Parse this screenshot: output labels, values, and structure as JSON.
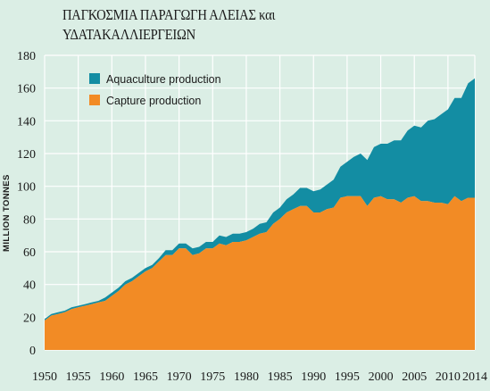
{
  "chart_data": {
    "type": "area",
    "title_lines": [
      "ΠΑΓΚΟΣΜΙΑ ΠΑΡΑΓΩΓΗ ΑΛΕΙΑΣ και",
      "ΥΔΑΤΑΚΑΛΛΙΕΡΓΕΙΩΝ"
    ],
    "xlabel": "",
    "ylabel": "MILLION TONNES",
    "xlim": [
      1950,
      2014
    ],
    "ylim": [
      0,
      180
    ],
    "y_ticks": [
      0,
      20,
      40,
      60,
      80,
      100,
      120,
      140,
      160,
      180
    ],
    "x_ticks": [
      1950,
      1955,
      1960,
      1965,
      1970,
      1975,
      1980,
      1985,
      1990,
      1995,
      2000,
      2005,
      2010,
      2014
    ],
    "grid": true,
    "stacked": true,
    "legend_position": "top-left",
    "colors": {
      "background": "#dbeee5",
      "grid": "#ffffff",
      "capture": "#f28b25",
      "aquaculture": "#138da3"
    },
    "x": [
      1950,
      1951,
      1952,
      1953,
      1954,
      1955,
      1956,
      1957,
      1958,
      1959,
      1960,
      1961,
      1962,
      1963,
      1964,
      1965,
      1966,
      1967,
      1968,
      1969,
      1970,
      1971,
      1972,
      1973,
      1974,
      1975,
      1976,
      1977,
      1978,
      1979,
      1980,
      1981,
      1982,
      1983,
      1984,
      1985,
      1986,
      1987,
      1988,
      1989,
      1990,
      1991,
      1992,
      1993,
      1994,
      1995,
      1996,
      1997,
      1998,
      1999,
      2000,
      2001,
      2002,
      2003,
      2004,
      2005,
      2006,
      2007,
      2008,
      2009,
      2010,
      2011,
      2012,
      2013,
      2014
    ],
    "series": [
      {
        "name": "Aquaculture production",
        "color": "#138da3",
        "values": [
          1,
          1,
          1,
          1,
          1,
          1,
          1,
          1,
          1,
          2,
          2,
          2,
          2,
          2,
          2,
          2,
          2,
          2,
          3,
          3,
          3,
          3,
          4,
          4,
          4,
          4,
          5,
          5,
          5,
          5,
          5,
          5,
          6,
          6,
          7,
          7,
          8,
          9,
          11,
          11,
          13,
          14,
          15,
          17,
          19,
          21,
          24,
          26,
          28,
          31,
          32,
          34,
          36,
          38,
          41,
          43,
          45,
          49,
          51,
          54,
          58,
          60,
          63,
          70,
          73
        ]
      },
      {
        "name": "Capture production",
        "color": "#f28b25",
        "values": [
          18,
          21,
          22,
          23,
          25,
          26,
          27,
          28,
          29,
          30,
          33,
          36,
          40,
          42,
          45,
          48,
          50,
          54,
          58,
          58,
          62,
          62,
          58,
          59,
          62,
          62,
          65,
          64,
          66,
          66,
          67,
          69,
          71,
          72,
          77,
          80,
          84,
          86,
          88,
          88,
          84,
          84,
          86,
          87,
          93,
          94,
          94,
          94,
          88,
          93,
          94,
          92,
          92,
          90,
          93,
          94,
          91,
          91,
          90,
          90,
          89,
          94,
          91,
          93,
          93
        ]
      }
    ],
    "legend": [
      {
        "label": "Aquaculture production",
        "color": "#138da3"
      },
      {
        "label": "Capture production",
        "color": "#f28b25"
      }
    ]
  }
}
